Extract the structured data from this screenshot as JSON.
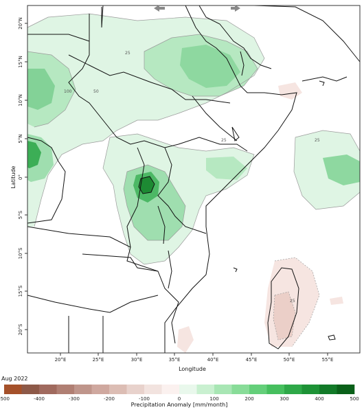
{
  "period_label": "Aug 2022",
  "map": {
    "x_axis_title": "Longitude",
    "y_axis_title": "Latitude",
    "lon_ticks": [
      "20°E",
      "25°E",
      "30°E",
      "35°E",
      "40°E",
      "45°E",
      "50°E",
      "55°E"
    ],
    "lat_ticks": [
      "20°N",
      "15°N",
      "10°N",
      "5°N",
      "0°",
      "5°S",
      "10°S",
      "15°S",
      "20°S"
    ],
    "contour_labels": [
      "25",
      "50",
      "100",
      "25",
      "25",
      "25"
    ],
    "nav_left_icon": "arrow-left-icon",
    "nav_right_icon": "arrow-right-icon"
  },
  "colorbar": {
    "title": "Precipitation Anomaly [mm/month]",
    "tick_labels": [
      "-500",
      "-400",
      "-300",
      "-200",
      "-100",
      "0",
      "100",
      "200",
      "300",
      "400",
      "500"
    ],
    "colors": [
      "#a5512a",
      "#8d5948",
      "#a06a5e",
      "#b07f73",
      "#bf958b",
      "#cfa89f",
      "#dcbdb4",
      "#e8d2cc",
      "#f2e3df",
      "#fbf1ef",
      "#e9f8ec",
      "#c9f0d0",
      "#a8e6b4",
      "#88dc98",
      "#64cf7a",
      "#46bf5e",
      "#2ea848",
      "#1d9236",
      "#127a28",
      "#0a6019"
    ]
  }
}
